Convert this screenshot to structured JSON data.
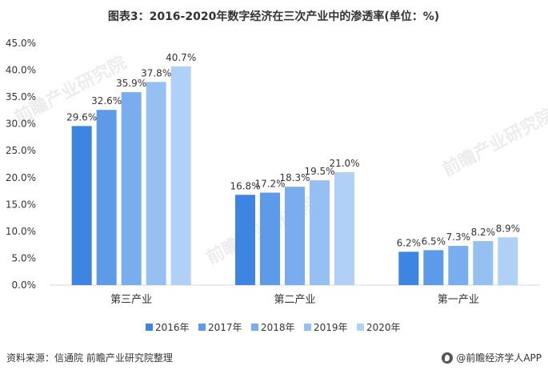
{
  "chart_data": {
    "type": "bar",
    "title": "图表3：2016-2020年数字经济在三次产业中的渗透率(单位：%)",
    "categories": [
      "第三产业",
      "第二产业",
      "第一产业"
    ],
    "series": [
      {
        "name": "2016年",
        "color": "#3d85e0",
        "values": [
          29.6,
          16.8,
          6.2
        ]
      },
      {
        "name": "2017年",
        "color": "#5d9be8",
        "values": [
          32.6,
          17.2,
          6.5
        ]
      },
      {
        "name": "2018年",
        "color": "#7aaded",
        "values": [
          35.9,
          18.3,
          7.3
        ]
      },
      {
        "name": "2019年",
        "color": "#96bff2",
        "values": [
          37.8,
          19.5,
          8.2
        ]
      },
      {
        "name": "2020年",
        "color": "#b0d0f6",
        "values": [
          40.7,
          21.0,
          8.9
        ]
      }
    ],
    "ylim": [
      0,
      45
    ],
    "yticks": [
      "0.0%",
      "5.0%",
      "10.0%",
      "15.0%",
      "20.0%",
      "25.0%",
      "30.0%",
      "35.0%",
      "40.0%",
      "45.0%"
    ],
    "grid": false,
    "legend": "bottom"
  },
  "footer": {
    "source": "资料来源：信通院 前瞻产业研究院整理",
    "brand": "@前瞻经济学人APP"
  },
  "watermark": "前瞻产业研究院"
}
